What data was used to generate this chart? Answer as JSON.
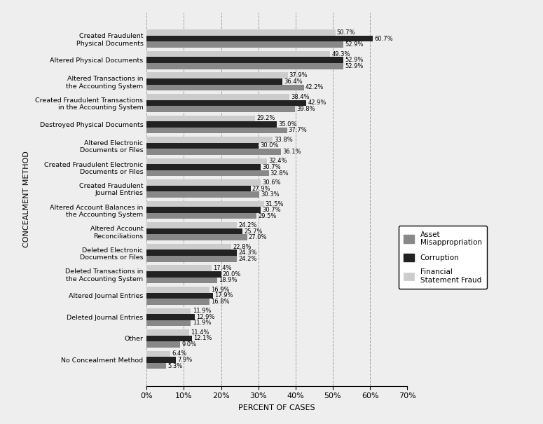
{
  "categories": [
    "Created Fraudulent\nPhysical Documents",
    "Altered Physical Documents",
    "Altered Transactions in\nthe Accounting System",
    "Created Fraudulent Transactions\nin the Accounting System",
    "Destroyed Physical Documents",
    "Altered Electronic\nDocuments or Files",
    "Created Fraudulent Electronic\nDocuments or Files",
    "Created Fraudulent\nJournal Entries",
    "Altered Account Balances in\nthe Accounting System",
    "Altered Account\nReconciliations",
    "Deleted Electronic\nDocuments or Files",
    "Deleted Transactions in\nthe Accounting System",
    "Altered Journal Entries",
    "Deleted Journal Entries",
    "Other",
    "No Concealment Method"
  ],
  "asset_misappropriation": [
    52.9,
    52.9,
    42.2,
    39.8,
    37.7,
    36.1,
    32.8,
    30.3,
    29.5,
    27.0,
    24.2,
    18.9,
    16.8,
    11.9,
    9.0,
    5.3
  ],
  "corruption": [
    60.7,
    52.9,
    36.4,
    42.9,
    35.0,
    30.0,
    30.7,
    27.9,
    30.7,
    25.7,
    24.3,
    20.0,
    17.9,
    12.9,
    12.1,
    7.9
  ],
  "financial_statement_fraud": [
    50.7,
    49.3,
    37.9,
    38.4,
    29.2,
    33.8,
    32.4,
    30.6,
    31.5,
    24.2,
    22.8,
    17.4,
    16.9,
    11.9,
    11.4,
    6.4
  ],
  "color_asset": "#888888",
  "color_corruption": "#222222",
  "color_financial": "#cccccc",
  "xlabel": "PERCENT OF CASES",
  "ylabel": "CONCEALMENT METHOD",
  "xlim": [
    0,
    70
  ],
  "xticks": [
    0,
    10,
    20,
    30,
    40,
    50,
    60,
    70
  ],
  "xticklabels": [
    "0%",
    "10%",
    "20%",
    "30%",
    "40%",
    "50%",
    "60%",
    "70%"
  ],
  "legend_labels": [
    "Asset\nMisappropriation",
    "Corruption",
    "Financial\nStatement Fraud"
  ],
  "bar_height": 0.28,
  "background_color": "#eeeeee"
}
